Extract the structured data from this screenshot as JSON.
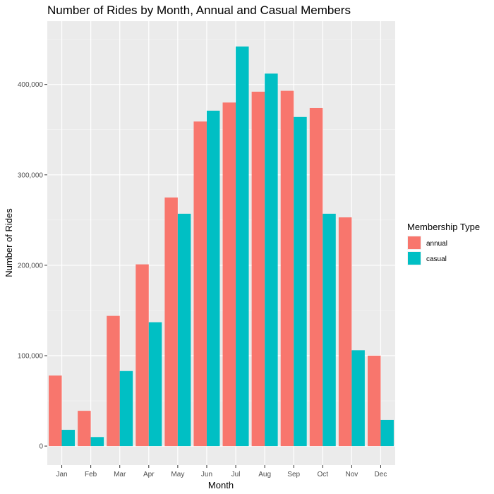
{
  "chart_data": {
    "type": "bar",
    "title": "Number of Rides by Month, Annual and Casual Members",
    "xlabel": "Month",
    "ylabel": "Number of Rides",
    "categories": [
      "Jan",
      "Feb",
      "Mar",
      "Apr",
      "May",
      "Jun",
      "Jul",
      "Aug",
      "Sep",
      "Oct",
      "Nov",
      "Dec"
    ],
    "series": [
      {
        "name": "annual",
        "color": "#F8766D",
        "values": [
          78000,
          39000,
          144000,
          201000,
          275000,
          359000,
          380000,
          392000,
          393000,
          374000,
          253000,
          100000
        ]
      },
      {
        "name": "casual",
        "color": "#00BFC4",
        "values": [
          18000,
          10000,
          83000,
          137000,
          257000,
          371000,
          442000,
          412000,
          364000,
          257000,
          106000,
          29000
        ]
      }
    ],
    "ylim": [
      -21000,
      470000
    ],
    "yticks": [
      0,
      100000,
      200000,
      300000,
      400000
    ],
    "ytick_labels": [
      "0",
      "100,000",
      "200,000",
      "300,000",
      "400,000"
    ],
    "legend": {
      "title": "Membership Type",
      "position": "right"
    },
    "grid": true,
    "panel_background": "#EBEBEB"
  }
}
